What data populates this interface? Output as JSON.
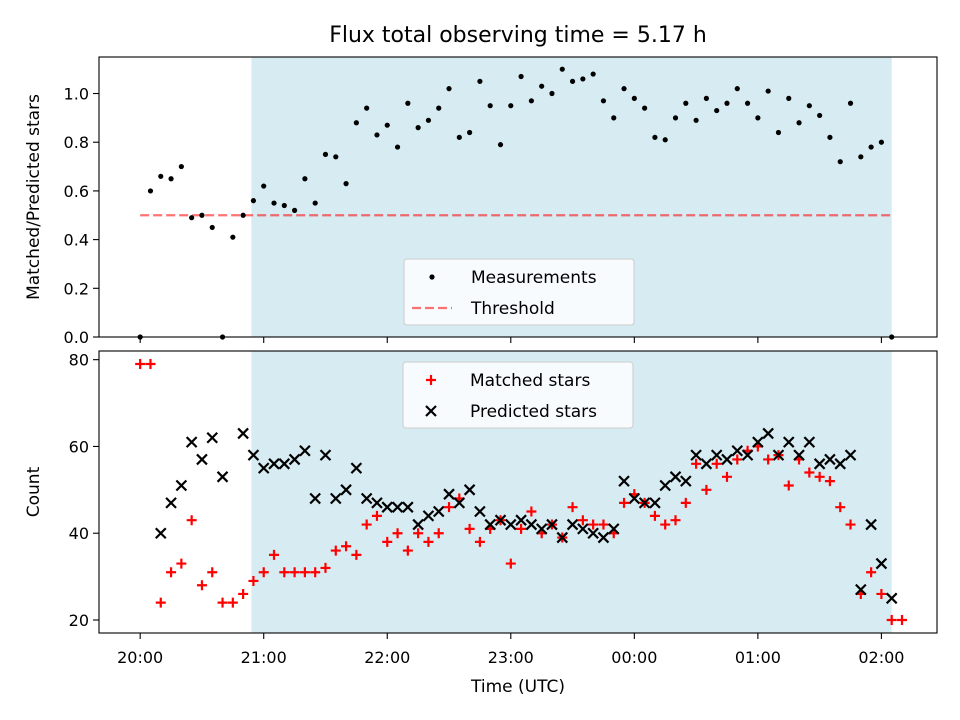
{
  "figure": {
    "title": "Flux total observing time = 5.17 h",
    "shaded_interval": [
      "20:54",
      "02:05"
    ],
    "colors": {
      "shade": "#add8e6",
      "measurements": "#000000",
      "threshold": "#ff0000",
      "matched": "#ff0000",
      "predicted": "#000000"
    }
  },
  "chart_data": [
    {
      "type": "scatter",
      "ylabel": "Matched/Predicted stars",
      "xlabel": "",
      "ylim": [
        0.0,
        1.15
      ],
      "yticks": [
        0.0,
        0.2,
        0.4,
        0.6,
        0.8,
        1.0
      ],
      "ytick_labels": [
        "0.0",
        "0.2",
        "0.4",
        "0.6",
        "0.8",
        "1.0"
      ],
      "legend": {
        "position": "lower center",
        "entries": [
          "Measurements",
          "Threshold"
        ]
      },
      "threshold": {
        "name": "Threshold",
        "value": 0.5,
        "x_range": [
          "20:00",
          "02:05"
        ]
      },
      "series": [
        {
          "name": "Measurements",
          "marker": "dot",
          "x": [
            "20:00",
            "20:05",
            "20:10",
            "20:15",
            "20:20",
            "20:25",
            "20:30",
            "20:35",
            "20:40",
            "20:45",
            "20:50",
            "20:55",
            "21:00",
            "21:05",
            "21:10",
            "21:15",
            "21:20",
            "21:25",
            "21:30",
            "21:35",
            "21:40",
            "21:45",
            "21:50",
            "21:55",
            "22:00",
            "22:05",
            "22:10",
            "22:15",
            "22:20",
            "22:25",
            "22:30",
            "22:35",
            "22:40",
            "22:45",
            "22:50",
            "22:55",
            "23:00",
            "23:05",
            "23:10",
            "23:15",
            "23:20",
            "23:25",
            "23:30",
            "23:35",
            "23:40",
            "23:45",
            "23:50",
            "23:55",
            "00:00",
            "00:05",
            "00:10",
            "00:15",
            "00:20",
            "00:25",
            "00:30",
            "00:35",
            "00:40",
            "00:45",
            "00:50",
            "00:55",
            "01:00",
            "01:05",
            "01:10",
            "01:15",
            "01:20",
            "01:25",
            "01:30",
            "01:35",
            "01:40",
            "01:45",
            "01:50",
            "01:55",
            "02:00",
            "02:05"
          ],
          "y": [
            0.0,
            0.6,
            0.66,
            0.65,
            0.7,
            0.49,
            0.5,
            0.45,
            0.0,
            0.41,
            0.5,
            0.56,
            0.62,
            0.55,
            0.54,
            0.52,
            0.65,
            0.55,
            0.75,
            0.74,
            0.63,
            0.88,
            0.94,
            0.83,
            0.87,
            0.78,
            0.96,
            0.86,
            0.89,
            0.94,
            1.02,
            0.82,
            0.84,
            1.05,
            0.95,
            0.79,
            0.95,
            1.07,
            0.97,
            1.03,
            1.0,
            1.1,
            1.05,
            1.06,
            1.08,
            0.97,
            0.9,
            1.02,
            0.98,
            0.94,
            0.82,
            0.81,
            0.9,
            0.96,
            0.89,
            0.98,
            0.93,
            0.96,
            1.02,
            0.96,
            0.9,
            1.01,
            0.84,
            0.98,
            0.88,
            0.95,
            0.91,
            0.82,
            0.72,
            0.96,
            0.74,
            0.78,
            0.8,
            0.0
          ]
        }
      ]
    },
    {
      "type": "scatter",
      "ylabel": "Count",
      "xlabel": "Time (UTC)",
      "ylim": [
        17,
        82
      ],
      "yticks": [
        20,
        40,
        60,
        80
      ],
      "ytick_labels": [
        "20",
        "40",
        "60",
        "80"
      ],
      "xlim": [
        "19:40",
        "02:27"
      ],
      "xticks": [
        "20:00",
        "21:00",
        "22:00",
        "23:00",
        "00:00",
        "01:00",
        "02:00"
      ],
      "xtick_labels": [
        "20:00",
        "21:00",
        "22:00",
        "23:00",
        "00:00",
        "01:00",
        "02:00"
      ],
      "legend": {
        "position": "upper center",
        "entries": [
          "Matched stars",
          "Predicted stars"
        ]
      },
      "series": [
        {
          "name": "Matched stars",
          "marker": "plus",
          "x": [
            "20:00",
            "20:05",
            "20:10",
            "20:15",
            "20:20",
            "20:25",
            "20:30",
            "20:35",
            "20:40",
            "20:45",
            "20:50",
            "20:55",
            "21:00",
            "21:05",
            "21:10",
            "21:15",
            "21:20",
            "21:25",
            "21:30",
            "21:35",
            "21:40",
            "21:45",
            "21:50",
            "21:55",
            "22:00",
            "22:05",
            "22:10",
            "22:15",
            "22:20",
            "22:25",
            "22:30",
            "22:35",
            "22:40",
            "22:45",
            "22:50",
            "22:55",
            "23:00",
            "23:05",
            "23:10",
            "23:15",
            "23:20",
            "23:25",
            "23:30",
            "23:35",
            "23:40",
            "23:45",
            "23:50",
            "23:55",
            "00:00",
            "00:05",
            "00:10",
            "00:15",
            "00:20",
            "00:25",
            "00:30",
            "00:35",
            "00:40",
            "00:45",
            "00:50",
            "00:55",
            "01:00",
            "01:05",
            "01:10",
            "01:15",
            "01:20",
            "01:25",
            "01:30",
            "01:35",
            "01:40",
            "01:45",
            "01:50",
            "01:55",
            "02:00",
            "02:05",
            "02:10"
          ],
          "y": [
            79,
            79,
            24,
            31,
            33,
            43,
            28,
            31,
            24,
            24,
            26,
            29,
            31,
            35,
            31,
            31,
            31,
            31,
            32,
            36,
            37,
            35,
            42,
            44,
            38,
            40,
            36,
            40,
            38,
            40,
            46,
            48,
            41,
            38,
            41,
            43,
            33,
            41,
            45,
            40,
            42,
            39,
            46,
            43,
            42,
            42,
            40,
            47,
            49,
            47,
            44,
            42,
            43,
            47,
            56,
            50,
            56,
            53,
            57,
            59,
            60,
            57,
            58,
            51,
            57,
            54,
            53,
            52,
            46,
            42,
            26,
            31,
            26,
            20,
            20
          ]
        },
        {
          "name": "Predicted stars",
          "marker": "x",
          "x": [
            "20:10",
            "20:15",
            "20:20",
            "20:25",
            "20:30",
            "20:35",
            "20:40",
            "20:50",
            "20:55",
            "21:00",
            "21:05",
            "21:10",
            "21:15",
            "21:20",
            "21:25",
            "21:30",
            "21:35",
            "21:40",
            "21:45",
            "21:50",
            "21:55",
            "22:00",
            "22:05",
            "22:10",
            "22:15",
            "22:20",
            "22:25",
            "22:30",
            "22:35",
            "22:40",
            "22:45",
            "22:50",
            "22:55",
            "23:00",
            "23:05",
            "23:10",
            "23:15",
            "23:20",
            "23:25",
            "23:30",
            "23:35",
            "23:40",
            "23:45",
            "23:50",
            "23:55",
            "00:00",
            "00:05",
            "00:10",
            "00:15",
            "00:20",
            "00:25",
            "00:30",
            "00:35",
            "00:40",
            "00:45",
            "00:50",
            "00:55",
            "01:00",
            "01:05",
            "01:10",
            "01:15",
            "01:20",
            "01:25",
            "01:30",
            "01:35",
            "01:40",
            "01:45",
            "01:50",
            "01:55",
            "02:00",
            "02:05"
          ],
          "y": [
            40,
            47,
            51,
            61,
            57,
            62,
            53,
            63,
            58,
            55,
            56,
            56,
            57,
            59,
            48,
            58,
            48,
            50,
            55,
            48,
            47,
            46,
            46,
            46,
            42,
            44,
            45,
            49,
            47,
            50,
            45,
            42,
            43,
            42,
            43,
            42,
            41,
            42,
            39,
            42,
            41,
            40,
            39,
            41,
            52,
            48,
            47,
            47,
            51,
            53,
            52,
            58,
            56,
            58,
            57,
            59,
            58,
            61,
            63,
            58,
            61,
            58,
            61,
            56,
            57,
            56,
            58,
            27,
            42,
            33,
            25
          ]
        }
      ]
    }
  ]
}
